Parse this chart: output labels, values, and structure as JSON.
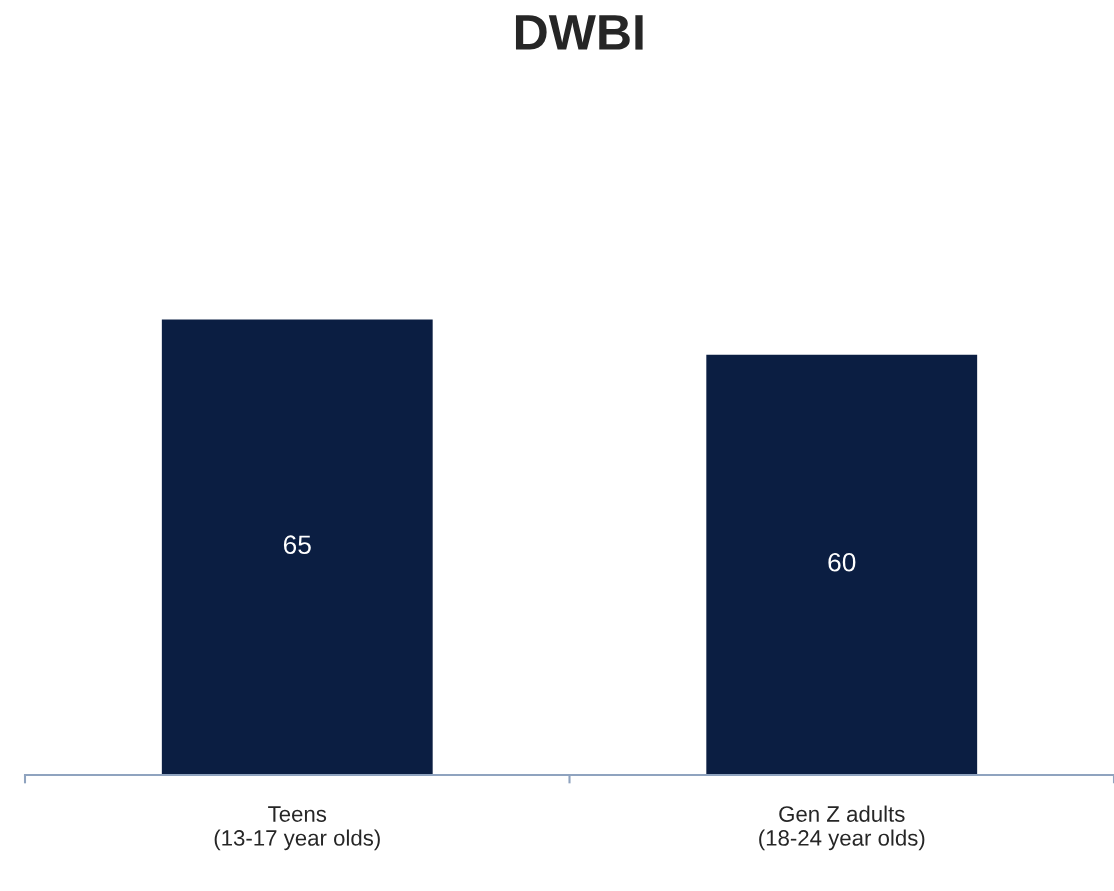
{
  "chart_data": {
    "type": "bar",
    "title": "DWBI",
    "categories": [
      "Teens\n(13-17 year olds)",
      "Gen Z adults\n(18-24 year olds)"
    ],
    "values": [
      65,
      60
    ],
    "color": "#0b1e42",
    "data_labels": true,
    "grid": false,
    "legend": false
  }
}
